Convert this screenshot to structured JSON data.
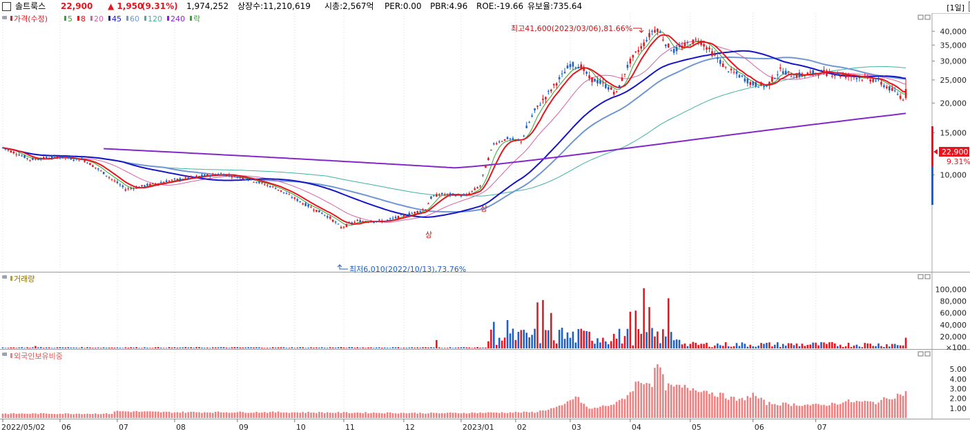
{
  "header": {
    "name": "솔트룩스",
    "price": "22,900",
    "change": "▲ 1,950",
    "change_pct": "(9.31%)",
    "volume": "1,974,252",
    "listed": "상장수:11,210,619",
    "mcap": "시총:2,567억",
    "per": "PER:0.00",
    "pbr": "PBR:4.96",
    "roe": "ROE:-19.66",
    "reserve": "유보율:735.64",
    "period": "[1일]"
  },
  "colors": {
    "up": "#e8141e",
    "down": "#1e5fc8",
    "ma5": "#2ea82e",
    "ma8": "#e8141e",
    "ma20": "#d860a8",
    "ma45": "#1414c8",
    "ma60": "#6e96d2",
    "ma120": "#3cb4a0",
    "ma240": "#8228c8",
    "foreign": "#f08080"
  },
  "price_legend": [
    {
      "label": "가격(수정)",
      "color": "#e8141e"
    },
    {
      "label": "5",
      "color": "#2ea82e"
    },
    {
      "label": "8",
      "color": "#e8141e"
    },
    {
      "label": "20",
      "color": "#d860a8"
    },
    {
      "label": "45",
      "color": "#1414c8"
    },
    {
      "label": "60",
      "color": "#6e96d2"
    },
    {
      "label": "120",
      "color": "#3cb4a0"
    },
    {
      "label": "240",
      "color": "#8228c8"
    },
    {
      "label": "락",
      "color": "#2ea82e"
    }
  ],
  "volume_title": "거래량",
  "foreign_title": "외국인보유비중",
  "annotations": {
    "high": "최고41,600(2023/03/06),81.66%",
    "low": "최저6,010(2022/10/13),73.76%",
    "upper_limit_1": "상",
    "upper_limit_2": "상"
  },
  "price_box": {
    "value": "22,900",
    "pct": "9.31%"
  },
  "chart_data": [
    {
      "type": "candlestick",
      "title": "가격(수정)",
      "yticks": [
        "10,000",
        "15,000",
        "20,000",
        "25,000",
        "30,000",
        "35,000",
        "40,000"
      ],
      "ylim": [
        4000,
        44000
      ],
      "x_labels": [
        "2022/05/02",
        "06",
        "07",
        "08",
        "09",
        "10",
        "11",
        "12",
        "2023/01",
        "02",
        "03",
        "04",
        "05",
        "06",
        "07"
      ],
      "close_anchors": [
        [
          0,
          13000
        ],
        [
          10,
          11600
        ],
        [
          20,
          11900
        ],
        [
          30,
          11500
        ],
        [
          40,
          9600
        ],
        [
          45,
          8700
        ],
        [
          50,
          8900
        ],
        [
          60,
          9400
        ],
        [
          70,
          9800
        ],
        [
          80,
          10100
        ],
        [
          90,
          9600
        ],
        [
          100,
          8800
        ],
        [
          110,
          7600
        ],
        [
          120,
          6600
        ],
        [
          124,
          6010
        ],
        [
          130,
          6400
        ],
        [
          140,
          6400
        ],
        [
          150,
          6900
        ],
        [
          155,
          7200
        ],
        [
          157,
          8000
        ],
        [
          160,
          8300
        ],
        [
          170,
          8200
        ],
        [
          175,
          9000
        ],
        [
          180,
          13500
        ],
        [
          185,
          14200
        ],
        [
          190,
          13800
        ],
        [
          195,
          18500
        ],
        [
          200,
          22000
        ],
        [
          205,
          26000
        ],
        [
          208,
          29000
        ],
        [
          212,
          28500
        ],
        [
          215,
          25500
        ],
        [
          220,
          24000
        ],
        [
          225,
          22000
        ],
        [
          230,
          30000
        ],
        [
          235,
          35500
        ],
        [
          238,
          40000
        ],
        [
          240,
          41000
        ],
        [
          243,
          35500
        ],
        [
          246,
          33000
        ],
        [
          250,
          35000
        ],
        [
          255,
          37000
        ],
        [
          260,
          32500
        ],
        [
          265,
          28000
        ],
        [
          270,
          26000
        ],
        [
          275,
          24000
        ],
        [
          280,
          23500
        ],
        [
          285,
          27500
        ],
        [
          290,
          26000
        ],
        [
          295,
          26500
        ],
        [
          300,
          27000
        ],
        [
          310,
          26000
        ],
        [
          320,
          25000
        ],
        [
          325,
          23000
        ],
        [
          330,
          21000
        ],
        [
          331,
          22900
        ]
      ],
      "ma_series": {
        "5": "follows close",
        "8": "follows close",
        "20": "follows close",
        "45": "follows close",
        "60": "follows close",
        "120": "follows close",
        "240": "starts 2022/06, ends ~18,000"
      }
    },
    {
      "type": "bar",
      "title": "거래량",
      "yticks": [
        "×100",
        "20,000",
        "40,000",
        "60,000",
        "80,000",
        "100,000"
      ],
      "ylim": [
        0,
        110000
      ],
      "spikes": [
        [
          12,
          4000
        ],
        [
          159,
          14000
        ],
        [
          178,
          12000
        ],
        [
          180,
          45000
        ],
        [
          182,
          18000
        ],
        [
          185,
          48000
        ],
        [
          196,
          78000
        ],
        [
          198,
          82000
        ],
        [
          201,
          60000
        ],
        [
          205,
          35000
        ],
        [
          213,
          30000
        ],
        [
          230,
          62000
        ],
        [
          232,
          64000
        ],
        [
          235,
          102000
        ],
        [
          237,
          70000
        ],
        [
          244,
          85000
        ],
        [
          331,
          18000
        ]
      ]
    },
    {
      "type": "bar",
      "title": "외국인보유비중",
      "yticks": [
        "1.00",
        "2.00",
        "3.00",
        "4.00",
        "5.00"
      ],
      "ylim": [
        0,
        6
      ],
      "anchors": [
        [
          0,
          0.45
        ],
        [
          40,
          0.45
        ],
        [
          41,
          0.7
        ],
        [
          60,
          0.6
        ],
        [
          100,
          0.6
        ],
        [
          160,
          0.5
        ],
        [
          195,
          0.6
        ],
        [
          205,
          1.2
        ],
        [
          210,
          2.2
        ],
        [
          215,
          0.9
        ],
        [
          225,
          1.5
        ],
        [
          230,
          2.6
        ],
        [
          232,
          3.5
        ],
        [
          235,
          3.8
        ],
        [
          238,
          3.6
        ],
        [
          240,
          5.6
        ],
        [
          243,
          3.2
        ],
        [
          250,
          3.1
        ],
        [
          255,
          3.0
        ],
        [
          260,
          2.6
        ],
        [
          265,
          2.2
        ],
        [
          270,
          1.8
        ],
        [
          275,
          2.4
        ],
        [
          280,
          1.5
        ],
        [
          290,
          1.4
        ],
        [
          300,
          1.3
        ],
        [
          310,
          1.7
        ],
        [
          320,
          1.6
        ],
        [
          325,
          2.1
        ],
        [
          331,
          2.6
        ]
      ]
    }
  ]
}
